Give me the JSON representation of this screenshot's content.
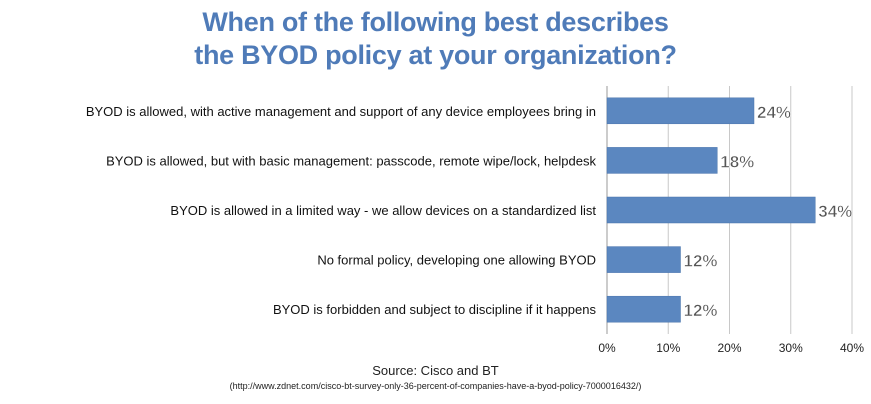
{
  "title_lines": [
    "When of the following best describes",
    "the BYOD policy at your organization?"
  ],
  "chart_data": {
    "type": "bar",
    "orientation": "horizontal",
    "categories": [
      "BYOD is allowed, with active management and support of any device employees bring in",
      "BYOD is allowed, but with basic management: passcode, remote wipe/lock, helpdesk",
      "BYOD is allowed in a limited way - we allow devices on a standardized list",
      "No formal policy, developing one allowing BYOD",
      "BYOD is forbidden and subject to discipline if it happens"
    ],
    "values": [
      24,
      18,
      34,
      12,
      12
    ],
    "value_labels": [
      "24%",
      "18%",
      "34%",
      "12%",
      "12%"
    ],
    "x_ticks": [
      0,
      10,
      20,
      30,
      40
    ],
    "x_tick_labels": [
      "0%",
      "10%",
      "20%",
      "30%",
      "40%"
    ],
    "xlim": [
      0,
      40
    ],
    "grid": "vertical",
    "legend": "none",
    "bar_color": "#5b87c0",
    "grid_color": "#c8c8c8",
    "label_color": "#555555"
  },
  "source": {
    "text": "Source: Cisco and BT",
    "url": "(http://www.zdnet.com/cisco-bt-survey-only-36-percent-of-companies-have-a-byod-policy-7000016432/)"
  }
}
